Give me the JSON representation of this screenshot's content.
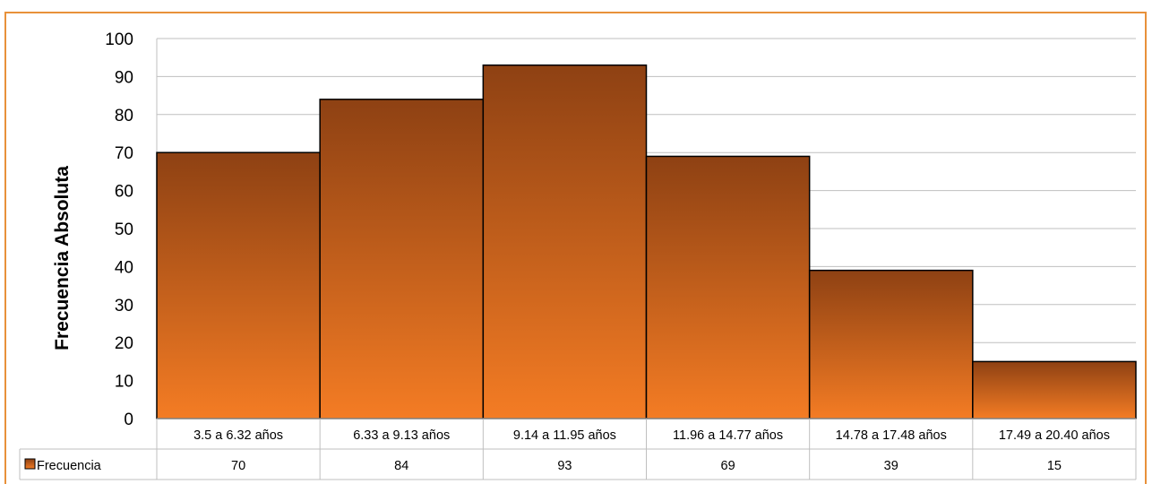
{
  "chart_data": {
    "type": "bar",
    "title": "",
    "xlabel": "",
    "ylabel": "Frecuencia Absoluta",
    "ylim": [
      0,
      100
    ],
    "yticks": [
      0,
      10,
      20,
      30,
      40,
      50,
      60,
      70,
      80,
      90,
      100
    ],
    "grid": true,
    "legend": "data-table-left",
    "categories": [
      "3.5 a 6.32 años",
      "6.33 a 9.13 años",
      "9.14 a 11.95 años",
      "11.96 a 14.77 años",
      "14.78 a 17.48 años",
      "17.49 a 20.40 años"
    ],
    "series": [
      {
        "name": "Frecuencia",
        "values": [
          70,
          84,
          93,
          69,
          39,
          15
        ]
      }
    ],
    "colors": {
      "bar_top": "#8E4113",
      "bar_bottom": "#F47C24",
      "frame": "#E8913A",
      "grid": "#BFBFBF"
    }
  }
}
